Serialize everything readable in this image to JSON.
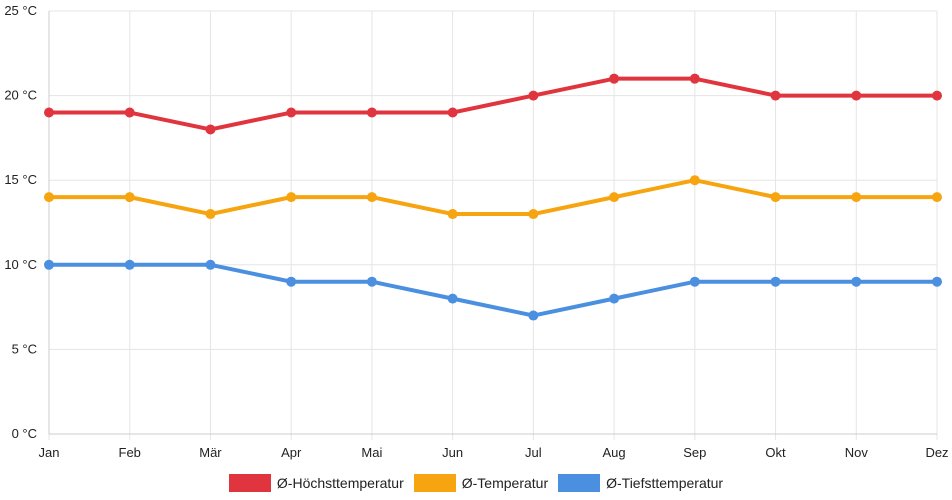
{
  "chart_data": {
    "type": "line",
    "categories": [
      "Jan",
      "Feb",
      "Mär",
      "Apr",
      "Mai",
      "Jun",
      "Jul",
      "Aug",
      "Sep",
      "Okt",
      "Nov",
      "Dez"
    ],
    "y_ticks": [
      "0 °C",
      "5 °C",
      "10 °C",
      "15 °C",
      "20 °C",
      "25 °C"
    ],
    "ylim": [
      0,
      25
    ],
    "grid": true,
    "legend_position": "bottom",
    "series": [
      {
        "name": "Ø-Höchsttemperatur",
        "color": "#e0353e",
        "values": [
          19,
          19,
          18,
          19,
          19,
          19,
          20,
          21,
          21,
          20,
          20,
          20
        ]
      },
      {
        "name": "Ø-Temperatur",
        "color": "#f6a40f",
        "values": [
          14,
          14,
          13,
          14,
          14,
          13,
          13,
          14,
          15,
          14,
          14,
          14
        ]
      },
      {
        "name": "Ø-Tiefsttemperatur",
        "color": "#4a8fe0",
        "values": [
          10,
          10,
          10,
          9,
          9,
          8,
          7,
          8,
          9,
          9,
          9,
          9
        ]
      }
    ]
  }
}
